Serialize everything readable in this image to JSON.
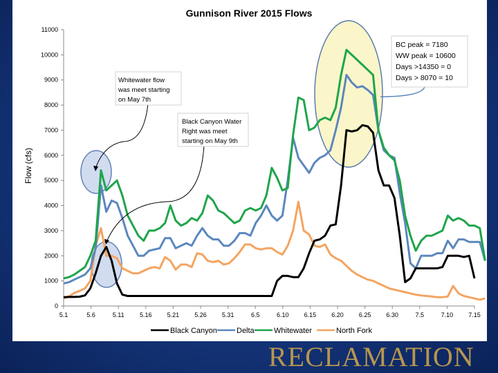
{
  "chart_data": {
    "type": "line",
    "title": "Gunnison River 2015 Flows",
    "ylabel": "Flow (cfs)",
    "xlabel": "",
    "ylim": [
      0,
      11000
    ],
    "yticks": [
      0,
      1000,
      2000,
      3000,
      4000,
      5000,
      6000,
      7000,
      8000,
      9000,
      10000,
      11000
    ],
    "xticks": [
      "5.1",
      "5.6",
      "5.11",
      "5.16",
      "5.21",
      "5.26",
      "5.31",
      "6.5",
      "6.10",
      "6.15",
      "6.20",
      "6.25",
      "6.30",
      "7.5",
      "7.10",
      "7.15"
    ],
    "grid": false,
    "legend_position": "bottom",
    "series": [
      {
        "name": "Black Canyon",
        "color": "#000000",
        "values": [
          350,
          360,
          360,
          370,
          420,
          700,
          1300,
          2000,
          2350,
          1800,
          900,
          450,
          400,
          400,
          400,
          400,
          400,
          400,
          400,
          400,
          400,
          400,
          400,
          400,
          400,
          400,
          400,
          400,
          400,
          400,
          400,
          400,
          400,
          400,
          400,
          400,
          400,
          400,
          400,
          400,
          1000,
          1200,
          1200,
          1150,
          1150,
          1500,
          2100,
          2600,
          2650,
          2800,
          3200,
          3250,
          4800,
          7000,
          6950,
          7000,
          7200,
          7150,
          6900,
          5400,
          4800,
          4800,
          4300,
          2800,
          950,
          1100,
          1500,
          1500,
          1500,
          1500,
          1500,
          1550,
          2000,
          2000,
          2000,
          1950,
          2000,
          1100
        ]
      },
      {
        "name": "Delta",
        "color": "#5b87be",
        "values": [
          900,
          950,
          1050,
          1150,
          1250,
          1500,
          2300,
          4800,
          3750,
          4200,
          4100,
          3500,
          2800,
          2400,
          2000,
          2000,
          2200,
          2250,
          2300,
          2700,
          2700,
          2300,
          2400,
          2500,
          2400,
          2800,
          3100,
          2800,
          2650,
          2650,
          2400,
          2400,
          2600,
          2900,
          2900,
          2800,
          3300,
          3600,
          4000,
          3600,
          3400,
          3600,
          5000,
          6700,
          5900,
          5600,
          5300,
          5700,
          5900,
          6000,
          6200,
          7000,
          7900,
          9200,
          8900,
          8700,
          8750,
          8600,
          8400,
          7000,
          6200,
          6000,
          5900,
          4500,
          3300,
          1700,
          1500,
          2000,
          2000,
          2000,
          2100,
          2100,
          2600,
          2300,
          2650,
          2650,
          2550,
          2550,
          2550,
          1800
        ]
      },
      {
        "name": "Whitewater",
        "color": "#1fa54b",
        "values": [
          1100,
          1150,
          1250,
          1400,
          1550,
          2000,
          2600,
          5400,
          4600,
          4800,
          5000,
          4400,
          3600,
          3200,
          2800,
          2600,
          3000,
          3000,
          3100,
          3300,
          4000,
          3400,
          3200,
          3300,
          3500,
          3400,
          3700,
          4400,
          4200,
          3800,
          3700,
          3500,
          3300,
          3400,
          3800,
          3900,
          3800,
          3900,
          4400,
          5500,
          5100,
          4600,
          4700,
          6800,
          8300,
          8200,
          7000,
          7100,
          7400,
          7500,
          7400,
          7900,
          9200,
          10200,
          10000,
          9800,
          9600,
          9400,
          9200,
          7000,
          6300,
          6000,
          5800,
          5000,
          3600,
          2800,
          2200,
          2600,
          2800,
          2800,
          2900,
          3000,
          3600,
          3400,
          3500,
          3400,
          3200,
          3200,
          3100,
          1800
        ]
      },
      {
        "name": "North Fork",
        "color": "#f4a460",
        "values": [
          300,
          380,
          520,
          600,
          700,
          1000,
          2400,
          3100,
          2000,
          2000,
          1900,
          1500,
          1400,
          1300,
          1300,
          1400,
          1500,
          1550,
          1500,
          1950,
          1800,
          1450,
          1650,
          1650,
          1550,
          2100,
          2050,
          1800,
          1750,
          1800,
          1650,
          1700,
          1900,
          2150,
          2450,
          2450,
          2300,
          2250,
          2300,
          2300,
          2150,
          2050,
          2400,
          3000,
          4150,
          3000,
          2850,
          2400,
          2350,
          2450,
          2050,
          1900,
          1800,
          1600,
          1400,
          1250,
          1150,
          1050,
          1000,
          900,
          800,
          700,
          650,
          600,
          550,
          500,
          450,
          420,
          400,
          380,
          350,
          350,
          380,
          800,
          500,
          400,
          350,
          300,
          250,
          300
        ]
      }
    ],
    "annotations": {
      "callout_whitewater": [
        "Whitewater flow",
        "was meet starting",
        "on May 7th"
      ],
      "callout_black_canyon": [
        "Black Canyon Water",
        "Right was meet",
        "starting on May 9th"
      ],
      "stats": [
        "BC peak  =  7180",
        "WW peak = 10600",
        "Days >14350 =   0",
        "Days >  8070 =  10"
      ]
    }
  },
  "footer": {
    "logo_text": "RECLAMATION"
  }
}
